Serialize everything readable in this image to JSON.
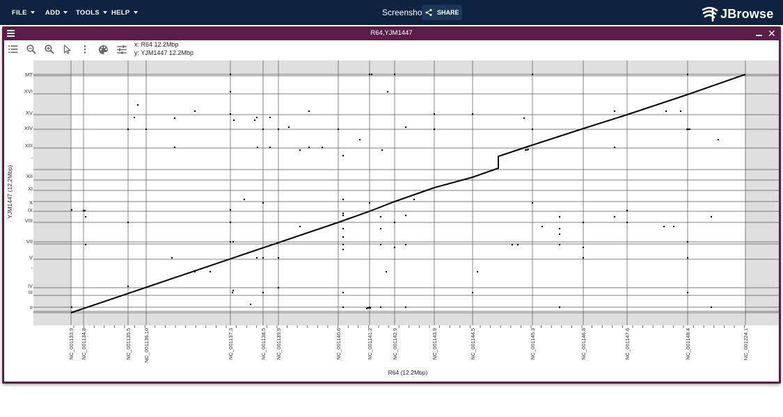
{
  "app": {
    "menus": [
      {
        "label": "FILE"
      },
      {
        "label": "ADD"
      },
      {
        "label": "TOOLS"
      },
      {
        "label": "HELP"
      }
    ],
    "session_name": "Screenshot",
    "share_label": "SHARE",
    "logo_text": "JBrowse"
  },
  "view": {
    "title": "R64,YJM1447",
    "coords": {
      "x": "x: R64 12.2Mbp",
      "y": "y: YJM1447 12.2Mbp"
    },
    "toolbar_icons": [
      "list-icon",
      "zoom-out-icon",
      "zoom-in-icon",
      "cursor-icon",
      "more-vertical-icon",
      "palette-icon",
      "tune-icon"
    ]
  },
  "plot": {
    "x_axis_label": "R64 (12.2Mbp)",
    "y_axis_label": "YJM1447 (12.2Mbp)",
    "x_labels": [
      "NC_001133.9",
      "NC_001134.8",
      "NC_001135.5",
      "NC_001136.10",
      "NC_001137.3",
      "NC_001138.5",
      "NC_001139.9",
      "NC_001140.6",
      "NC_001141.2",
      "NC_001142.9",
      "NC_001143.9",
      "NC_001144.5",
      "NC_001145.3",
      "NC_001146.8",
      "NC_001147.6",
      "NC_001148.4",
      "NC_001224.1"
    ],
    "y_labels": [
      "MT",
      "XVI",
      "XV",
      "XIV",
      "XIII",
      "XII",
      "XI",
      "X",
      "IX",
      "VIII",
      "VII",
      "V",
      "IV",
      "III",
      "II"
    ],
    "colors": {
      "line": "#000000",
      "grid": "#555555",
      "outside": "#dedede"
    }
  }
}
